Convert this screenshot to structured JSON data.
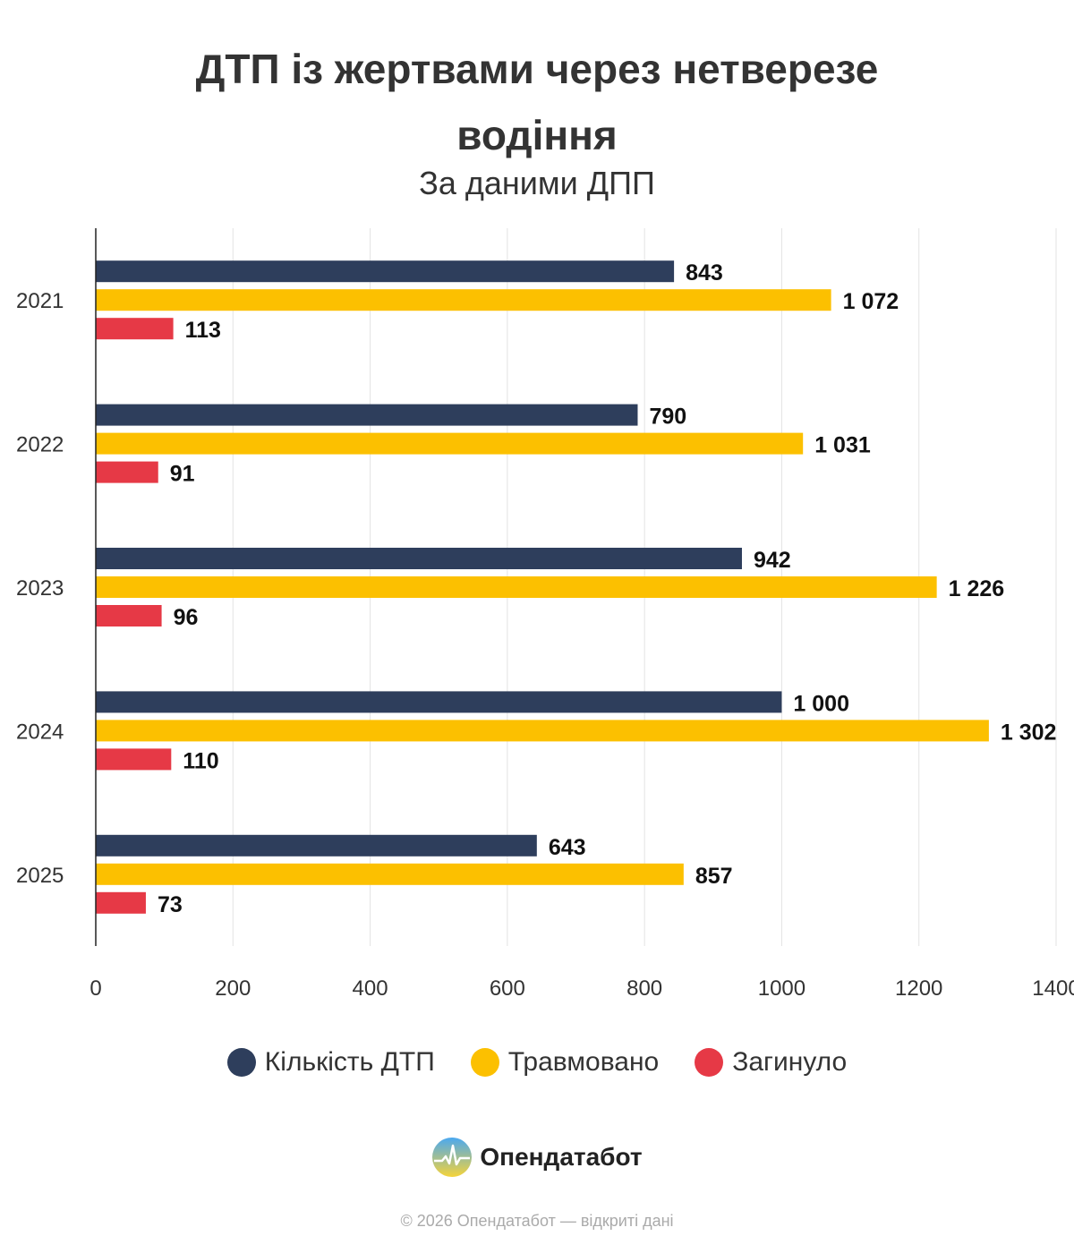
{
  "chart_data": {
    "type": "bar",
    "orientation": "horizontal",
    "title": "ДТП із жертвами через нетверезе водіння",
    "subtitle": "За даними ДПП",
    "categories": [
      "2021",
      "2022",
      "2023",
      "2024",
      "2025"
    ],
    "series": [
      {
        "name": "Кількість ДТП",
        "color": "#2e3e5c",
        "values": [
          843,
          790,
          942,
          1000,
          643
        ],
        "labels": [
          "843",
          "790",
          "942",
          "1 000",
          "643"
        ]
      },
      {
        "name": "Травмовано",
        "color": "#fcc000",
        "values": [
          1072,
          1031,
          1226,
          1302,
          857
        ],
        "labels": [
          "1 072",
          "1 031",
          "1 226",
          "1 302",
          "857"
        ]
      },
      {
        "name": "Загинуло",
        "color": "#e63946",
        "values": [
          113,
          91,
          96,
          110,
          73
        ],
        "labels": [
          "113",
          "91",
          "96",
          "110",
          "73"
        ]
      }
    ],
    "xlim": [
      0,
      1400
    ],
    "xticks": [
      "0",
      "200",
      "400",
      "600",
      "800",
      "1000",
      "1200",
      "1400"
    ],
    "grid": true,
    "legend": "bottom"
  },
  "brand": {
    "name": "Опендатабот",
    "logo_icon": "opendatabot-logo-icon"
  },
  "copyright": "© 2026 Опендатабот — відкриті дані"
}
